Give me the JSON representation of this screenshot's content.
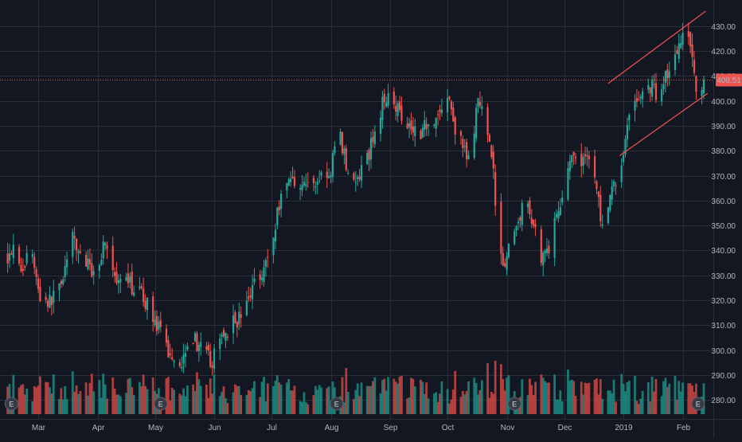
{
  "chart_data": {
    "type": "candlestick",
    "symbol_price_label": "408.51",
    "y_axis": {
      "range": [
        274,
        436
      ],
      "ticks": [
        280,
        290,
        300,
        310,
        320,
        330,
        340,
        350,
        360,
        370,
        380,
        390,
        400,
        410,
        420,
        430
      ],
      "tick_labels": [
        "280.00",
        "290.00",
        "300.00",
        "310.00",
        "320.00",
        "330.00",
        "340.00",
        "350.00",
        "360.00",
        "370.00",
        "380.00",
        "390.00",
        "400.00",
        "410.00",
        "420.00",
        "430.00"
      ]
    },
    "x_axis": {
      "labels": [
        {
          "text": "Mar",
          "date": "2018-03-01"
        },
        {
          "text": "Apr",
          "date": "2018-04-01"
        },
        {
          "text": "May",
          "date": "2018-05-01"
        },
        {
          "text": "Jun",
          "date": "2018-06-01"
        },
        {
          "text": "Jul",
          "date": "2018-07-01"
        },
        {
          "text": "Aug",
          "date": "2018-08-01"
        },
        {
          "text": "Sep",
          "date": "2018-09-01"
        },
        {
          "text": "Oct",
          "date": "2018-10-01"
        },
        {
          "text": "Nov",
          "date": "2018-11-01"
        },
        {
          "text": "Dec",
          "date": "2018-12-01"
        },
        {
          "text": "2019",
          "date": "2019-01-01"
        },
        {
          "text": "Feb",
          "date": "2019-02-01"
        }
      ]
    },
    "grid": true,
    "colors": {
      "background": "#131722",
      "grid": "#2a2e39",
      "up": "#26a69a",
      "down": "#ef5350",
      "volume_up": "#1f8a80",
      "volume_down": "#c94744",
      "trendline": "#ef5350",
      "price_line": "#ef5350",
      "earnings_badge": "#363a45"
    },
    "price_close": 408.51,
    "price_path": [
      [
        "2018-02-13",
        338
      ],
      [
        "2018-02-17",
        344
      ],
      [
        "2018-02-21",
        330
      ],
      [
        "2018-02-25",
        345
      ],
      [
        "2018-03-01",
        323
      ],
      [
        "2018-03-07",
        319
      ],
      [
        "2018-03-13",
        328
      ],
      [
        "2018-03-19",
        344
      ],
      [
        "2018-03-25",
        336
      ],
      [
        "2018-03-31",
        330
      ],
      [
        "2018-04-05",
        345
      ],
      [
        "2018-04-11",
        325
      ],
      [
        "2018-04-17",
        327
      ],
      [
        "2018-04-23",
        323
      ],
      [
        "2018-04-29",
        316
      ],
      [
        "2018-05-04",
        306
      ],
      [
        "2018-05-09",
        298
      ],
      [
        "2018-05-15",
        295
      ],
      [
        "2018-05-19",
        308
      ],
      [
        "2018-05-25",
        300
      ],
      [
        "2018-05-31",
        295
      ],
      [
        "2018-06-05",
        306
      ],
      [
        "2018-06-11",
        311
      ],
      [
        "2018-06-17",
        315
      ],
      [
        "2018-06-22",
        328
      ],
      [
        "2018-06-27",
        333
      ],
      [
        "2018-07-02",
        345
      ],
      [
        "2018-07-06",
        364
      ],
      [
        "2018-07-11",
        369
      ],
      [
        "2018-07-17",
        367
      ],
      [
        "2018-07-23",
        366
      ],
      [
        "2018-07-28",
        372
      ],
      [
        "2018-08-01",
        368
      ],
      [
        "2018-08-04",
        393
      ],
      [
        "2018-08-08",
        378
      ],
      [
        "2018-08-13",
        366
      ],
      [
        "2018-08-18",
        372
      ],
      [
        "2018-08-22",
        382
      ],
      [
        "2018-08-27",
        396
      ],
      [
        "2018-08-31",
        405
      ],
      [
        "2018-09-05",
        397
      ],
      [
        "2018-09-11",
        391
      ],
      [
        "2018-09-16",
        387
      ],
      [
        "2018-09-21",
        392
      ],
      [
        "2018-09-26",
        394
      ],
      [
        "2018-10-01",
        402
      ],
      [
        "2018-10-06",
        386
      ],
      [
        "2018-10-12",
        376
      ],
      [
        "2018-10-17",
        399
      ],
      [
        "2018-10-23",
        387
      ],
      [
        "2018-10-27",
        352
      ],
      [
        "2018-10-30",
        335
      ],
      [
        "2018-11-04",
        343
      ],
      [
        "2018-11-09",
        358
      ],
      [
        "2018-11-14",
        354
      ],
      [
        "2018-11-19",
        338
      ],
      [
        "2018-11-24",
        343
      ],
      [
        "2018-11-29",
        360
      ],
      [
        "2018-12-04",
        377
      ],
      [
        "2018-12-08",
        373
      ],
      [
        "2018-12-13",
        380
      ],
      [
        "2018-12-18",
        365
      ],
      [
        "2018-12-22",
        343
      ],
      [
        "2018-12-26",
        365
      ],
      [
        "2018-12-31",
        373
      ],
      [
        "2019-01-04",
        397
      ],
      [
        "2019-01-09",
        400
      ],
      [
        "2019-01-14",
        407
      ],
      [
        "2019-01-19",
        403
      ],
      [
        "2019-01-24",
        412
      ],
      [
        "2019-01-29",
        418
      ],
      [
        "2019-02-01",
        430
      ],
      [
        "2019-02-05",
        425
      ],
      [
        "2019-02-08",
        403
      ],
      [
        "2019-02-12",
        408.51
      ]
    ],
    "channel_lines": [
      {
        "from": [
          "2018-12-24",
          407
        ],
        "to": [
          "2019-02-13",
          436
        ]
      },
      {
        "from": [
          "2018-12-30",
          378
        ],
        "to": [
          "2019-02-14",
          403
        ]
      }
    ],
    "earnings_markers": [
      {
        "date": "2018-02-15",
        "label": "E"
      },
      {
        "date": "2018-05-04",
        "label": "E"
      },
      {
        "date": "2018-08-04",
        "label": "E"
      },
      {
        "date": "2018-11-05",
        "label": "E"
      },
      {
        "date": "2019-02-09",
        "label": "E"
      }
    ]
  }
}
